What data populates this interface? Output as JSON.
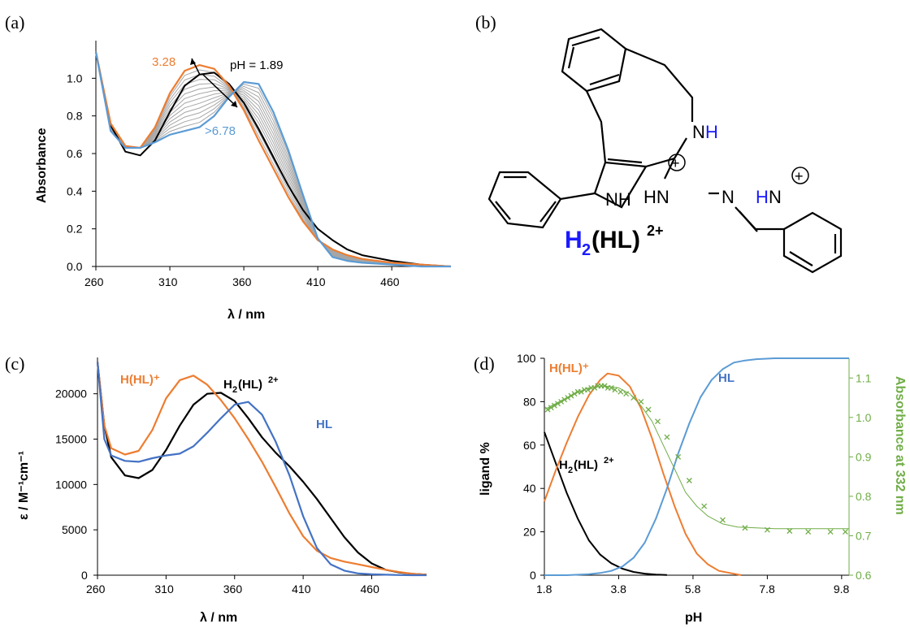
{
  "panels": {
    "a": {
      "label": "(a)"
    },
    "b": {
      "label": "(b)"
    },
    "c": {
      "label": "(c)"
    },
    "d": {
      "label": "(d)"
    }
  },
  "colors": {
    "black": "#000000",
    "orange": "#ed7d31",
    "blue": "#5b9bd5",
    "blue2": "#4472c4",
    "gray": "#a6a6a6",
    "green": "#70ad47",
    "molH": "#1a1aff"
  },
  "structure": {
    "atoms": {
      "NH_ring": "N",
      "H_ring": "H",
      "NH_indole": "NH",
      "HN_hydrazone": "HN",
      "N_hydrazone": "N",
      "N_imine": "N",
      "H_pyr": "H",
      "N_pyr": "N",
      "plus": "+"
    },
    "name_main": "H",
    "name_sub": "2",
    "name_rest": "(HL)",
    "name_sup": "2+"
  },
  "chart_data": [
    {
      "panel": "a",
      "type": "line",
      "xlabel": "λ / nm",
      "ylabel": "Absorbance",
      "xlim": [
        260,
        500
      ],
      "ylim": [
        0,
        1.2
      ],
      "xticks": [
        260,
        310,
        360,
        410,
        460
      ],
      "yticks": [
        "0.0",
        "0.2",
        "0.4",
        "0.6",
        "0.8",
        "1.0"
      ],
      "annotations": {
        "ph_start": "pH = 1.89",
        "ph_mid": "3.28",
        "ph_end": ">6.78"
      },
      "series": [
        {
          "role": "start",
          "color": "#000000",
          "x": [
            260,
            270,
            280,
            290,
            300,
            310,
            320,
            330,
            340,
            350,
            360,
            370,
            380,
            390,
            400,
            410,
            420,
            430,
            440,
            460,
            480,
            500
          ],
          "y": [
            1.14,
            0.75,
            0.61,
            0.59,
            0.67,
            0.82,
            0.96,
            1.02,
            1.03,
            0.97,
            0.87,
            0.73,
            0.58,
            0.43,
            0.3,
            0.2,
            0.14,
            0.09,
            0.06,
            0.03,
            0.01,
            0.0
          ]
        },
        {
          "role": "max",
          "color": "#ed7d31",
          "x": [
            260,
            270,
            280,
            290,
            300,
            310,
            320,
            330,
            340,
            350,
            360,
            370,
            380,
            390,
            400,
            410,
            420,
            430,
            440,
            460,
            480,
            500
          ],
          "y": [
            1.14,
            0.76,
            0.64,
            0.63,
            0.74,
            0.92,
            1.04,
            1.07,
            1.05,
            0.96,
            0.83,
            0.67,
            0.52,
            0.37,
            0.24,
            0.14,
            0.09,
            0.06,
            0.04,
            0.02,
            0.01,
            0.0
          ]
        },
        {
          "role": "end",
          "color": "#5b9bd5",
          "x": [
            260,
            270,
            280,
            290,
            300,
            310,
            320,
            330,
            340,
            350,
            360,
            370,
            380,
            390,
            400,
            410,
            420,
            430,
            440,
            460,
            480,
            500
          ],
          "y": [
            1.14,
            0.72,
            0.63,
            0.63,
            0.66,
            0.7,
            0.72,
            0.74,
            0.8,
            0.9,
            0.98,
            0.97,
            0.82,
            0.62,
            0.38,
            0.15,
            0.05,
            0.03,
            0.02,
            0.01,
            0.0,
            0.0
          ]
        }
      ],
      "intermediate_count": 12
    },
    {
      "panel": "c",
      "type": "line",
      "xlabel": "λ / nm",
      "ylabel": "ε / M⁻¹cm⁻¹",
      "xlim": [
        260,
        500
      ],
      "ylim": [
        0,
        24000
      ],
      "xticks": [
        260,
        310,
        360,
        410,
        460
      ],
      "yticks": [
        0,
        5000,
        10000,
        15000,
        20000
      ],
      "series_labels": {
        "orange": "H(HL)⁺",
        "black_main": "H",
        "black_sub": "2",
        "black_rest": "(HL)",
        "black_sup": "2+",
        "blue": "HL"
      },
      "series": [
        {
          "role": "H2(HL)2+",
          "color": "#000000",
          "x": [
            260,
            265,
            270,
            280,
            290,
            300,
            310,
            320,
            330,
            340,
            350,
            360,
            370,
            380,
            390,
            400,
            410,
            420,
            430,
            440,
            450,
            460,
            470,
            480,
            490,
            500
          ],
          "y": [
            23500,
            16500,
            13000,
            11000,
            10700,
            11600,
            13800,
            16500,
            18800,
            20000,
            20100,
            19200,
            17300,
            15200,
            13500,
            12000,
            10300,
            8400,
            6300,
            4200,
            2500,
            1300,
            600,
            300,
            150,
            50
          ]
        },
        {
          "role": "H(HL)+",
          "color": "#ed7d31",
          "x": [
            260,
            265,
            270,
            280,
            290,
            300,
            310,
            320,
            330,
            340,
            350,
            360,
            370,
            380,
            390,
            400,
            410,
            420,
            430,
            440,
            450,
            460,
            470,
            480,
            490,
            500
          ],
          "y": [
            23500,
            16500,
            14000,
            13300,
            13700,
            16000,
            19500,
            21500,
            22000,
            21000,
            19300,
            17300,
            15000,
            12500,
            9700,
            6800,
            4300,
            2700,
            1900,
            1500,
            1200,
            900,
            600,
            350,
            150,
            50
          ]
        },
        {
          "role": "HL",
          "color": "#4472c4",
          "x": [
            260,
            265,
            270,
            280,
            290,
            300,
            310,
            320,
            330,
            340,
            350,
            360,
            370,
            380,
            390,
            400,
            410,
            420,
            430,
            440,
            450,
            460,
            470,
            480,
            490,
            500
          ],
          "y": [
            23500,
            15000,
            13200,
            12600,
            12500,
            12900,
            13200,
            13400,
            14200,
            15700,
            17300,
            18800,
            19100,
            17700,
            14700,
            11000,
            6500,
            3000,
            1200,
            500,
            200,
            100,
            50,
            20,
            0,
            0
          ]
        }
      ]
    },
    {
      "panel": "d",
      "type": "line",
      "xlabel": "pH",
      "ylabel": "ligand %",
      "ylabel_right": "Absorbance at 332 nm",
      "xlim": [
        1.8,
        10
      ],
      "ylim": [
        0,
        100
      ],
      "ylim_right": [
        0.6,
        1.15
      ],
      "xticks": [
        "1.8",
        "3.8",
        "5.8",
        "7.8",
        "9.8"
      ],
      "yticks": [
        0,
        20,
        40,
        60,
        80,
        100
      ],
      "yticks_right": [
        "0.6",
        "0.7",
        "0.8",
        "0.9",
        "1.0",
        "1.1"
      ],
      "series_labels": {
        "orange": "H(HL)⁺",
        "blue": "HL",
        "black_main": "H",
        "black_sub": "2",
        "black_rest": "(HL)",
        "black_sup": "2+"
      },
      "series": [
        {
          "role": "H2(HL)2+",
          "color": "#000000",
          "x": [
            1.8,
            2.1,
            2.4,
            2.7,
            3.0,
            3.3,
            3.6,
            3.9,
            4.2,
            4.5,
            4.8,
            5.1
          ],
          "y": [
            66,
            52,
            38,
            26,
            16,
            9.5,
            5.5,
            3,
            1.5,
            0.7,
            0.3,
            0.1
          ]
        },
        {
          "role": "H(HL)+",
          "color": "#ed7d31",
          "x": [
            1.8,
            2.1,
            2.4,
            2.7,
            3.0,
            3.3,
            3.5,
            3.8,
            4.1,
            4.4,
            4.7,
            5.0,
            5.3,
            5.6,
            5.9,
            6.2,
            6.5,
            6.8,
            7.1
          ],
          "y": [
            34,
            48,
            61,
            73,
            83,
            90,
            93,
            92,
            87,
            77,
            63,
            47,
            32,
            19,
            10,
            5,
            2,
            1,
            0
          ]
        },
        {
          "role": "HL",
          "color": "#5b9bd5",
          "x": [
            1.8,
            2.4,
            3.0,
            3.3,
            3.6,
            3.9,
            4.2,
            4.5,
            4.8,
            5.1,
            5.4,
            5.7,
            6.0,
            6.3,
            6.6,
            6.9,
            7.2,
            7.5,
            8.0,
            9.0,
            10.0
          ],
          "y": [
            0,
            0,
            0.5,
            1,
            2,
            4,
            8,
            15,
            26,
            40,
            56,
            70,
            82,
            90,
            95,
            98,
            99,
            99.6,
            100,
            100,
            100
          ]
        },
        {
          "role": "fit_332",
          "color": "#70ad47",
          "axis": "right",
          "x": [
            1.8,
            2.2,
            2.6,
            3.0,
            3.4,
            3.8,
            4.1,
            4.4,
            4.7,
            5.0,
            5.3,
            5.6,
            5.9,
            6.2,
            6.6,
            7.0,
            7.5,
            8.0,
            9.0,
            10.0
          ],
          "y": [
            1.02,
            1.04,
            1.06,
            1.075,
            1.08,
            1.075,
            1.06,
            1.03,
            0.99,
            0.93,
            0.87,
            0.81,
            0.775,
            0.75,
            0.73,
            0.722,
            0.72,
            0.718,
            0.718,
            0.718
          ]
        },
        {
          "role": "measured_332",
          "color": "#70ad47",
          "axis": "right",
          "marker": "x",
          "x": [
            1.89,
            1.98,
            2.07,
            2.16,
            2.25,
            2.34,
            2.43,
            2.52,
            2.61,
            2.7,
            2.79,
            2.88,
            2.97,
            3.06,
            3.15,
            3.24,
            3.33,
            3.42,
            3.51,
            3.6,
            3.7,
            3.85,
            4.0,
            4.2,
            4.4,
            4.6,
            4.85,
            5.1,
            5.4,
            5.7,
            6.1,
            6.6,
            7.2,
            7.8,
            8.4,
            8.9,
            9.5,
            9.9
          ],
          "y": [
            1.02,
            1.025,
            1.03,
            1.035,
            1.04,
            1.045,
            1.05,
            1.055,
            1.06,
            1.065,
            1.065,
            1.07,
            1.07,
            1.075,
            1.075,
            1.08,
            1.08,
            1.08,
            1.075,
            1.075,
            1.07,
            1.065,
            1.06,
            1.05,
            1.04,
            1.02,
            0.99,
            0.95,
            0.9,
            0.84,
            0.775,
            0.74,
            0.72,
            0.715,
            0.712,
            0.71,
            0.71,
            0.71
          ]
        }
      ]
    }
  ]
}
